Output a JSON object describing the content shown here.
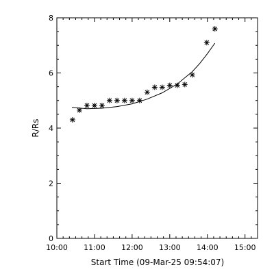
{
  "chart_data": {
    "type": "scatter",
    "title": "",
    "xlabel": "Start Time (09-Mar-25 09:54:07)",
    "ylabel": "R/Rs",
    "xlim": [
      "10:00",
      "15:20"
    ],
    "ylim": [
      0,
      8
    ],
    "x_ticks": [
      "10:00",
      "11:00",
      "12:00",
      "13:00",
      "14:00",
      "15:00"
    ],
    "y_ticks": [
      0,
      2,
      4,
      6,
      8
    ],
    "grid": false,
    "legend": "none",
    "series": [
      {
        "kind": "markers",
        "marker": "asterisk",
        "x": [
          "10:25",
          "10:36",
          "10:48",
          "11:00",
          "11:12",
          "11:24",
          "11:36",
          "11:48",
          "12:00",
          "12:12",
          "12:24",
          "12:36",
          "12:48",
          "13:00",
          "13:12",
          "13:24",
          "13:36",
          "13:59",
          "14:12"
        ],
        "y": [
          4.3,
          4.65,
          4.82,
          4.82,
          4.82,
          5.0,
          5.0,
          5.0,
          5.0,
          5.0,
          5.3,
          5.48,
          5.48,
          5.55,
          5.55,
          5.58,
          5.93,
          7.1,
          7.6
        ]
      },
      {
        "kind": "fit-curve",
        "x": [
          "10:24",
          "10:48",
          "11:12",
          "11:36",
          "12:00",
          "12:24",
          "12:48",
          "13:12",
          "13:36",
          "13:48",
          "14:00",
          "14:12"
        ],
        "y": [
          4.75,
          4.7,
          4.72,
          4.78,
          4.88,
          5.05,
          5.28,
          5.6,
          6.05,
          6.35,
          6.7,
          7.08
        ]
      }
    ]
  }
}
